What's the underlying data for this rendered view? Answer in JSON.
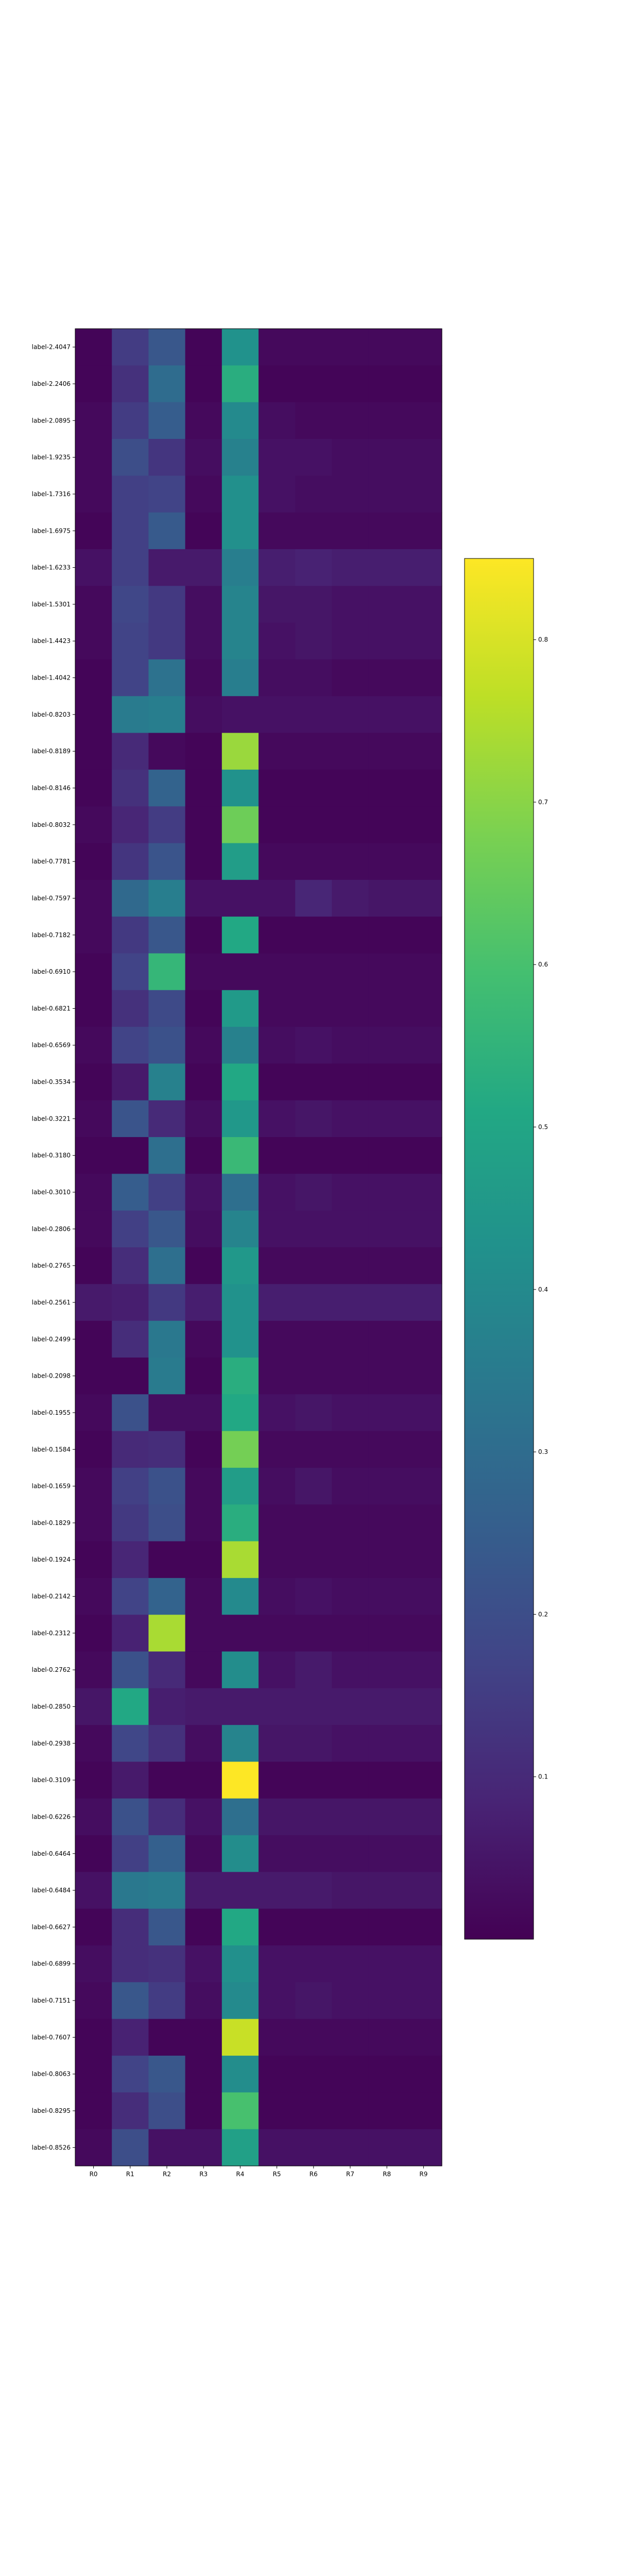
{
  "chart_data": {
    "type": "heatmap",
    "title": "",
    "xlabel": "",
    "ylabel": "",
    "columns": [
      "R0",
      "R1",
      "R2",
      "R3",
      "R4",
      "R5",
      "R6",
      "R7",
      "R8",
      "R9"
    ],
    "rows": [
      "label-2.4047",
      "label-2.2406",
      "label-2.0895",
      "label-1.9235",
      "label-1.7316",
      "label-1.6975",
      "label-1.6233",
      "label-1.5301",
      "label-1.4423",
      "label-1.4042",
      "label-0.8203",
      "label-0.8189",
      "label-0.8146",
      "label-0.8032",
      "label-0.7781",
      "label-0.7597",
      "label-0.7182",
      "label-0.6910",
      "label-0.6821",
      "label-0.6569",
      "label-0.3534",
      "label-0.3221",
      "label-0.3180",
      "label-0.3010",
      "label-0.2806",
      "label-0.2765",
      "label-0.2561",
      "label-0.2499",
      "label-0.2098",
      "label-0.1955",
      "label-0.1584",
      "label-0.1659",
      "label-0.1829",
      "label-0.1924",
      "label-0.2142",
      "label-0.2312",
      "label-0.2762",
      "label-0.2850",
      "label-0.2938",
      "label-0.3109",
      "label-0.6226",
      "label-0.6464",
      "label-0.6484",
      "label-0.6627",
      "label-0.6899",
      "label-0.7151",
      "label-0.7607",
      "label-0.8063",
      "label-0.8295",
      "label-0.8526"
    ],
    "values": [
      [
        0.01,
        0.15,
        0.23,
        0.01,
        0.43,
        0.02,
        0.02,
        0.02,
        0.02,
        0.02
      ],
      [
        0.01,
        0.12,
        0.3,
        0.01,
        0.53,
        0.01,
        0.01,
        0.01,
        0.01,
        0.01
      ],
      [
        0.02,
        0.15,
        0.25,
        0.02,
        0.4,
        0.03,
        0.02,
        0.02,
        0.02,
        0.02
      ],
      [
        0.02,
        0.2,
        0.13,
        0.03,
        0.37,
        0.04,
        0.04,
        0.03,
        0.03,
        0.03
      ],
      [
        0.02,
        0.16,
        0.17,
        0.02,
        0.42,
        0.04,
        0.03,
        0.03,
        0.03,
        0.03
      ],
      [
        0.01,
        0.16,
        0.24,
        0.01,
        0.42,
        0.02,
        0.02,
        0.02,
        0.02,
        0.02
      ],
      [
        0.04,
        0.16,
        0.06,
        0.06,
        0.36,
        0.07,
        0.08,
        0.07,
        0.07,
        0.07
      ],
      [
        0.02,
        0.18,
        0.14,
        0.03,
        0.38,
        0.05,
        0.05,
        0.04,
        0.04,
        0.04
      ],
      [
        0.02,
        0.17,
        0.14,
        0.03,
        0.38,
        0.04,
        0.05,
        0.04,
        0.04,
        0.04
      ],
      [
        0.01,
        0.17,
        0.32,
        0.02,
        0.36,
        0.03,
        0.03,
        0.02,
        0.02,
        0.02
      ],
      [
        0.01,
        0.35,
        0.36,
        0.03,
        0.04,
        0.04,
        0.04,
        0.04,
        0.04,
        0.04
      ],
      [
        0.01,
        0.1,
        0.02,
        0.01,
        0.72,
        0.02,
        0.02,
        0.02,
        0.02,
        0.02
      ],
      [
        0.01,
        0.12,
        0.27,
        0.01,
        0.43,
        0.01,
        0.01,
        0.01,
        0.01,
        0.01
      ],
      [
        0.02,
        0.09,
        0.15,
        0.01,
        0.66,
        0.01,
        0.01,
        0.01,
        0.01,
        0.01
      ],
      [
        0.01,
        0.13,
        0.22,
        0.01,
        0.47,
        0.02,
        0.02,
        0.02,
        0.02,
        0.02
      ],
      [
        0.02,
        0.29,
        0.36,
        0.04,
        0.04,
        0.04,
        0.09,
        0.06,
        0.05,
        0.05
      ],
      [
        0.02,
        0.14,
        0.23,
        0.01,
        0.51,
        0.01,
        0.01,
        0.01,
        0.01,
        0.01
      ],
      [
        0.01,
        0.17,
        0.56,
        0.02,
        0.02,
        0.02,
        0.02,
        0.02,
        0.02,
        0.02
      ],
      [
        0.01,
        0.12,
        0.19,
        0.01,
        0.46,
        0.02,
        0.02,
        0.02,
        0.02,
        0.02
      ],
      [
        0.02,
        0.17,
        0.21,
        0.02,
        0.37,
        0.03,
        0.04,
        0.03,
        0.03,
        0.03
      ],
      [
        0.01,
        0.06,
        0.37,
        0.01,
        0.51,
        0.01,
        0.01,
        0.01,
        0.01,
        0.01
      ],
      [
        0.02,
        0.22,
        0.1,
        0.03,
        0.45,
        0.04,
        0.05,
        0.04,
        0.04,
        0.04
      ],
      [
        0.01,
        0.01,
        0.31,
        0.01,
        0.57,
        0.01,
        0.01,
        0.01,
        0.01,
        0.01
      ],
      [
        0.02,
        0.25,
        0.16,
        0.04,
        0.31,
        0.04,
        0.05,
        0.04,
        0.04,
        0.04
      ],
      [
        0.02,
        0.16,
        0.23,
        0.03,
        0.38,
        0.04,
        0.04,
        0.04,
        0.04,
        0.04
      ],
      [
        0.01,
        0.11,
        0.31,
        0.01,
        0.45,
        0.02,
        0.02,
        0.02,
        0.02,
        0.02
      ],
      [
        0.06,
        0.07,
        0.14,
        0.07,
        0.43,
        0.07,
        0.07,
        0.07,
        0.07,
        0.07
      ],
      [
        0.01,
        0.11,
        0.34,
        0.02,
        0.43,
        0.02,
        0.02,
        0.02,
        0.02,
        0.02
      ],
      [
        0.01,
        0.01,
        0.35,
        0.01,
        0.53,
        0.02,
        0.02,
        0.02,
        0.02,
        0.02
      ],
      [
        0.02,
        0.21,
        0.03,
        0.03,
        0.51,
        0.04,
        0.05,
        0.04,
        0.04,
        0.04
      ],
      [
        0.01,
        0.1,
        0.11,
        0.01,
        0.67,
        0.02,
        0.02,
        0.02,
        0.02,
        0.02
      ],
      [
        0.02,
        0.16,
        0.21,
        0.02,
        0.47,
        0.03,
        0.05,
        0.03,
        0.03,
        0.03
      ],
      [
        0.02,
        0.14,
        0.2,
        0.02,
        0.53,
        0.02,
        0.02,
        0.02,
        0.02,
        0.02
      ],
      [
        0.01,
        0.09,
        0.01,
        0.01,
        0.74,
        0.02,
        0.02,
        0.02,
        0.02,
        0.02
      ],
      [
        0.02,
        0.17,
        0.27,
        0.02,
        0.4,
        0.03,
        0.04,
        0.03,
        0.03,
        0.03
      ],
      [
        0.01,
        0.08,
        0.74,
        0.02,
        0.02,
        0.02,
        0.02,
        0.02,
        0.02,
        0.02
      ],
      [
        0.02,
        0.21,
        0.1,
        0.02,
        0.41,
        0.04,
        0.06,
        0.04,
        0.04,
        0.04
      ],
      [
        0.05,
        0.51,
        0.07,
        0.06,
        0.06,
        0.06,
        0.06,
        0.06,
        0.06,
        0.06
      ],
      [
        0.02,
        0.18,
        0.12,
        0.03,
        0.38,
        0.05,
        0.05,
        0.04,
        0.04,
        0.04
      ],
      [
        0.01,
        0.06,
        0.01,
        0.01,
        0.85,
        0.01,
        0.01,
        0.01,
        0.01,
        0.01
      ],
      [
        0.03,
        0.21,
        0.11,
        0.04,
        0.31,
        0.05,
        0.05,
        0.05,
        0.05,
        0.05
      ],
      [
        0.01,
        0.16,
        0.26,
        0.02,
        0.41,
        0.03,
        0.03,
        0.03,
        0.03,
        0.03
      ],
      [
        0.04,
        0.34,
        0.35,
        0.06,
        0.06,
        0.06,
        0.06,
        0.05,
        0.05,
        0.05
      ],
      [
        0.01,
        0.11,
        0.23,
        0.01,
        0.51,
        0.01,
        0.01,
        0.01,
        0.01,
        0.01
      ],
      [
        0.03,
        0.11,
        0.12,
        0.04,
        0.42,
        0.04,
        0.04,
        0.04,
        0.04,
        0.04
      ],
      [
        0.02,
        0.23,
        0.15,
        0.03,
        0.4,
        0.04,
        0.05,
        0.04,
        0.04,
        0.04
      ],
      [
        0.01,
        0.08,
        0.01,
        0.01,
        0.78,
        0.02,
        0.02,
        0.02,
        0.02,
        0.02
      ],
      [
        0.01,
        0.17,
        0.23,
        0.01,
        0.41,
        0.01,
        0.01,
        0.01,
        0.01,
        0.01
      ],
      [
        0.01,
        0.11,
        0.2,
        0.01,
        0.6,
        0.01,
        0.01,
        0.01,
        0.01,
        0.01
      ],
      [
        0.02,
        0.2,
        0.04,
        0.04,
        0.48,
        0.04,
        0.04,
        0.04,
        0.04,
        0.04
      ]
    ],
    "colorbar": {
      "colormap": "viridis",
      "range": [
        0.0,
        0.85
      ],
      "ticks": [
        0.1,
        0.2,
        0.3,
        0.4,
        0.5,
        0.6,
        0.7,
        0.8
      ],
      "tick_labels": [
        "0.1",
        "0.2",
        "0.3",
        "0.4",
        "0.5",
        "0.6",
        "0.7",
        "0.8"
      ]
    },
    "grid": false
  }
}
